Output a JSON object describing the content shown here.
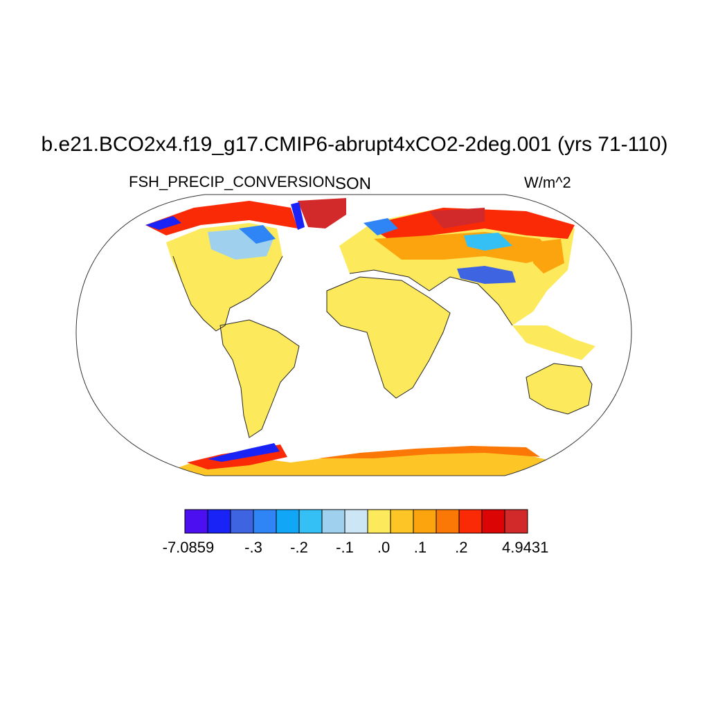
{
  "title": "b.e21.BCO2x4.f19_g17.CMIP6-abrupt4xCO2-2deg.001 (yrs 71-110)",
  "left_label": "FSH_PRECIP_CONVERSION",
  "center_label": "SON",
  "right_label": "W/m^2",
  "colorbar": {
    "colors": [
      "#4b0ff0",
      "#1a23f5",
      "#3f64e2",
      "#2f84f6",
      "#12a6f7",
      "#35c0f5",
      "#9fd1ee",
      "#cce6f5",
      "#fde95c",
      "#fdc526",
      "#fba40e",
      "#fb7706",
      "#fb2a06",
      "#dc0505",
      "#d22a2a"
    ],
    "labels": [
      "-7.0859",
      "-.3",
      "-.2",
      "-.1",
      ".0",
      ".1",
      ".2",
      "4.9431"
    ]
  }
}
